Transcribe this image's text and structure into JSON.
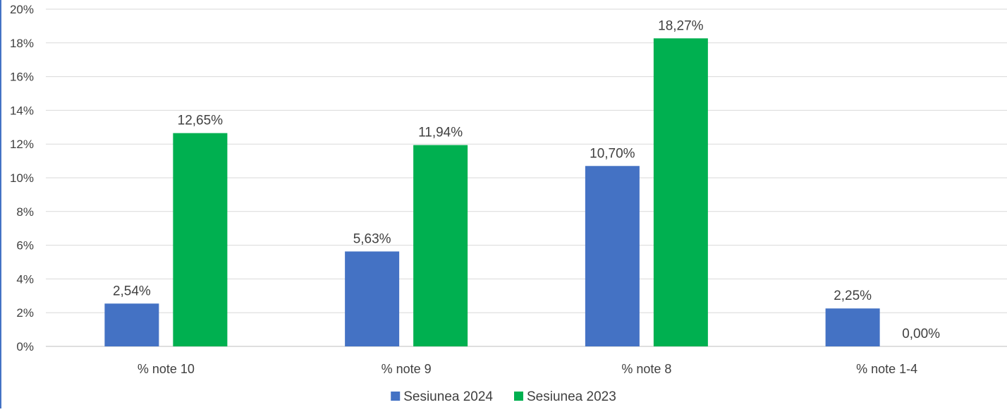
{
  "chart_data": {
    "type": "bar",
    "title": "",
    "xlabel": "",
    "ylabel": "",
    "categories": [
      "% note 10",
      "% note 9",
      "% note 8",
      "% note 1-4"
    ],
    "series": [
      {
        "name": "Sesiunea 2024",
        "color": "#4472c4",
        "values": [
          2.54,
          5.63,
          10.7,
          2.25
        ],
        "labels": [
          "2,54%",
          "5,63%",
          "10,70%",
          "2,25%"
        ]
      },
      {
        "name": "Sesiunea 2023",
        "color": "#00b050",
        "values": [
          12.65,
          11.94,
          18.27,
          0.0
        ],
        "labels": [
          "12,65%",
          "11,94%",
          "18,27%",
          "0,00%"
        ]
      }
    ],
    "ylim": [
      0,
      20
    ],
    "y_ticks": [
      0,
      2,
      4,
      6,
      8,
      10,
      12,
      14,
      16,
      18,
      20
    ],
    "y_tick_labels": [
      "0%",
      "2%",
      "4%",
      "6%",
      "8%",
      "10%",
      "12%",
      "14%",
      "16%",
      "18%",
      "20%"
    ],
    "grid": true,
    "legend_position": "bottom-center"
  }
}
